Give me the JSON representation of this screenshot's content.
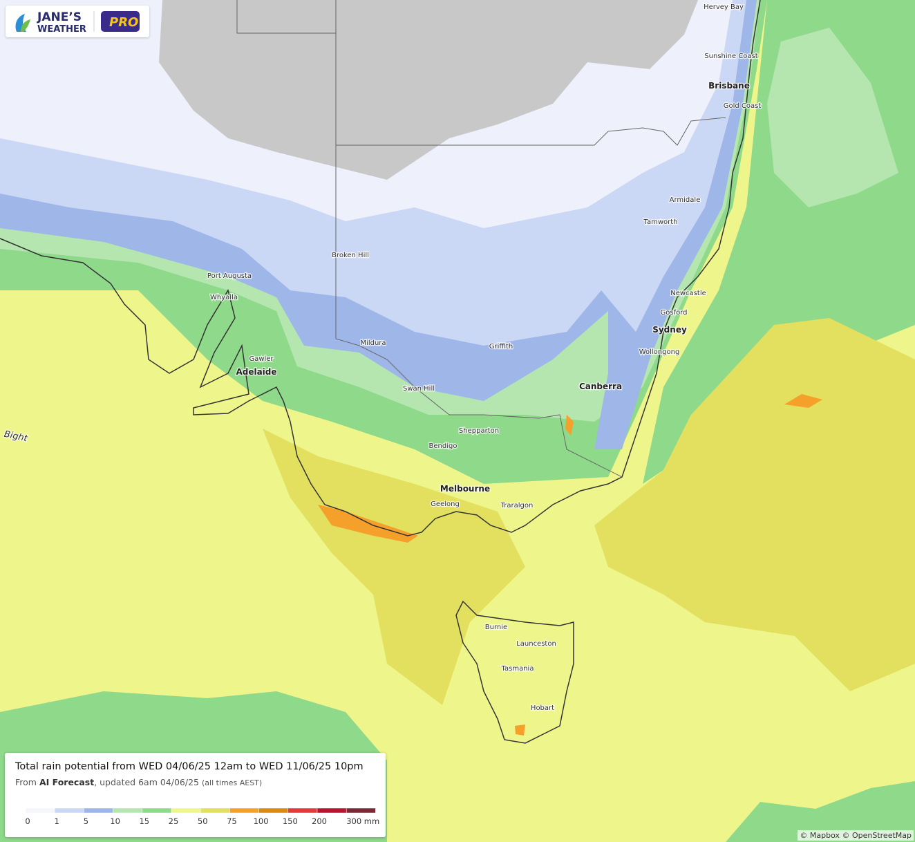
{
  "logo": {
    "line1": "JANE’S",
    "line2": "WEATHER",
    "badge": "PRO"
  },
  "places": [
    "Hervey Bay",
    "Sunshine Coast",
    "Brisbane",
    "Gold Coast",
    "Armidale",
    "Tamworth",
    "Newcastle",
    "Gosford",
    "Sydney",
    "Wollongong",
    "Canberra",
    "Broken Hill",
    "Port Augusta",
    "Whyalla",
    "Gawler",
    "Adelaide",
    "Mildura",
    "Griffith",
    "Swan Hill",
    "Shepparton",
    "Bendigo",
    "Melbourne",
    "Geelong",
    "Traralgon",
    "Burnie",
    "Launceston",
    "Tasmania",
    "Hobart",
    "Bight"
  ],
  "legend": {
    "title": "Total rain potential from WED 04/06/25 12am to WED 11/06/25 10pm",
    "source_prefix": "From",
    "source": "AI Forecast",
    "updated": ", updated 6am 04/06/25",
    "timezone": "(all times AEST)",
    "ticks": [
      0,
      1,
      5,
      10,
      15,
      25,
      50,
      75,
      100,
      150,
      200,
      {
        "value": 300,
        "label": "300 mm"
      }
    ],
    "colors": [
      "#f4f6fc",
      "#cbd8f5",
      "#9fb6e8",
      "#b5e6b0",
      "#8fd98a",
      "#eef58a",
      "#e2e05e",
      "#f5a02a",
      "#d98a12",
      "#e23a3a",
      "#b8142f",
      "#7a2a36"
    ]
  },
  "attribution": "© Mapbox © OpenStreetMap"
}
